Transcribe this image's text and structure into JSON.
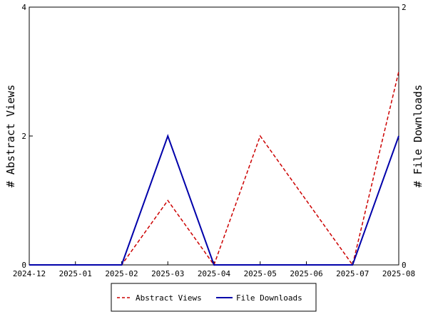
{
  "chart_data": {
    "type": "line",
    "x": [
      "2024-12",
      "2025-01",
      "2025-02",
      "2025-03",
      "2025-04",
      "2025-05",
      "2025-06",
      "2025-07",
      "2025-08"
    ],
    "ylabel_left": "# Abstract Views",
    "ylabel_right": "# File Downloads",
    "ylim_left": [
      0,
      4
    ],
    "ylim_right": [
      0,
      2
    ],
    "yticks_left": [
      "0",
      "2",
      "4"
    ],
    "yticks_right": [
      "0",
      "2"
    ],
    "series": [
      {
        "name": "Abstract Views",
        "axis": "left",
        "color": "#cc0000",
        "style": "dashed",
        "values": [
          0,
          0,
          0,
          1,
          0,
          2,
          1,
          0,
          3
        ]
      },
      {
        "name": "File Downloads",
        "axis": "right",
        "color": "#0000aa",
        "style": "solid",
        "values": [
          0,
          0,
          0,
          1,
          0,
          0,
          0,
          0,
          1
        ]
      }
    ],
    "grid": false,
    "legend_position": "bottom-center"
  }
}
